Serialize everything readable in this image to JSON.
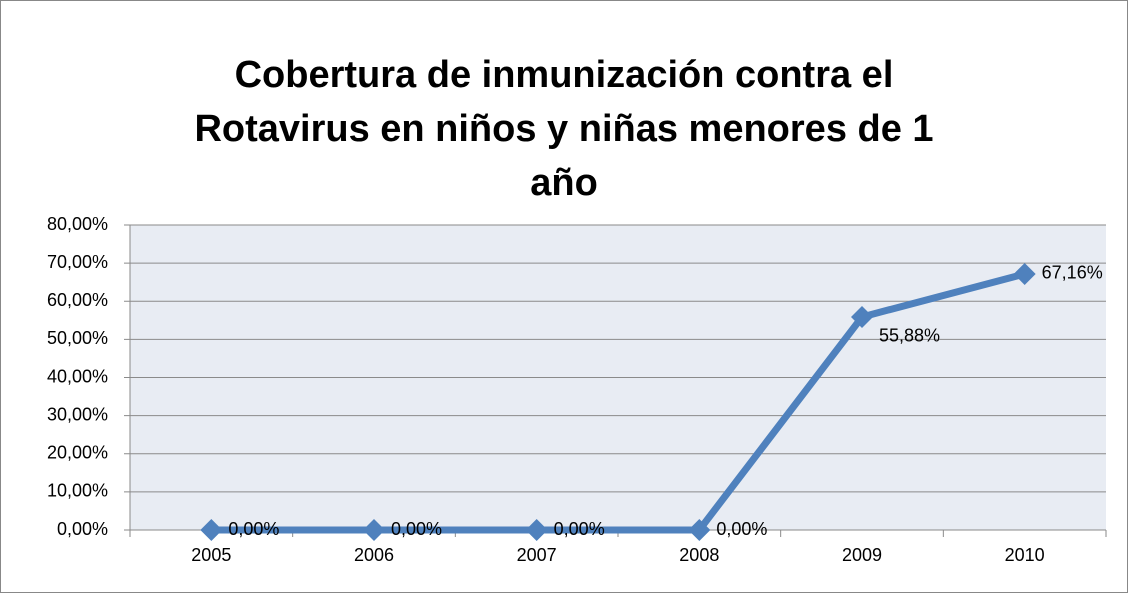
{
  "chart_data": {
    "type": "line",
    "title": [
      "Cobertura de inmunización contra el",
      "Rotavirus en niños y niñas menores de 1",
      "año"
    ],
    "categories": [
      "2005",
      "2006",
      "2007",
      "2008",
      "2009",
      "2010"
    ],
    "series": [
      {
        "color": "#4f81bd",
        "values": [
          0,
          0,
          0,
          0,
          55.88,
          67.16
        ],
        "value_labels": [
          "0,00%",
          "0,00%",
          "0,00%",
          "0,00%",
          "55,88%",
          "67,16%"
        ]
      }
    ],
    "ylim": [
      0,
      80
    ],
    "yticks": [
      {
        "value": 0,
        "label": "0,00%"
      },
      {
        "value": 10,
        "label": "10,00%"
      },
      {
        "value": 20,
        "label": "20,00%"
      },
      {
        "value": 30,
        "label": "30,00%"
      },
      {
        "value": 40,
        "label": "40,00%"
      },
      {
        "value": 50,
        "label": "50,00%"
      },
      {
        "value": 60,
        "label": "60,00%"
      },
      {
        "value": 70,
        "label": "70,00%"
      },
      {
        "value": 80,
        "label": "80,00%"
      }
    ],
    "grid": true
  }
}
